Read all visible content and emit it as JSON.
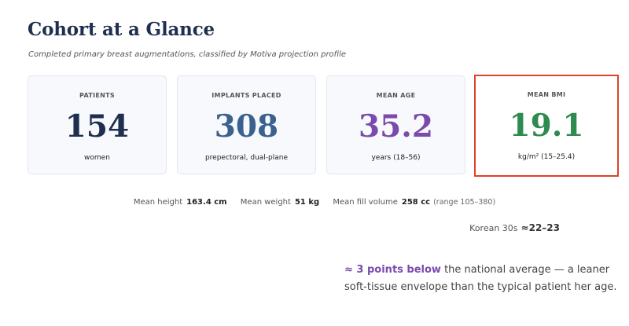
{
  "header": {
    "title": "Cohort at a Glance",
    "subtitle": "Completed primary breast augmentations, classified by Motiva projection profile"
  },
  "cards": [
    {
      "label": "PATIENTS",
      "value": "154",
      "note": "women",
      "color": "#1f2f4f"
    },
    {
      "label": "IMPLANTS PLACED",
      "value": "308",
      "note": "prepectoral, dual-plane",
      "color": "#3b628f"
    },
    {
      "label": "MEAN AGE",
      "value": "35.2",
      "note": "years  (18–56)",
      "color": "#7a4aad"
    },
    {
      "label": "MEAN BMI",
      "value": "19.1",
      "note": "kg/m²  (15–25.4)",
      "color": "#2e8a4e",
      "highlighted": true
    }
  ],
  "stats": {
    "height_label": "Mean height",
    "height_value": "163.4 cm",
    "weight_label": "Mean weight",
    "weight_value": "51 kg",
    "fill_label": "Mean fill volume",
    "fill_value": "258 cc",
    "fill_range": "(range 105–380)"
  },
  "comparison": {
    "label": "Korean 30s",
    "value": "≈22–23"
  },
  "insight": {
    "highlight": "≈ 3 points below",
    "text": " the national average — a leaner soft-tissue envelope than the typical patient her age."
  }
}
